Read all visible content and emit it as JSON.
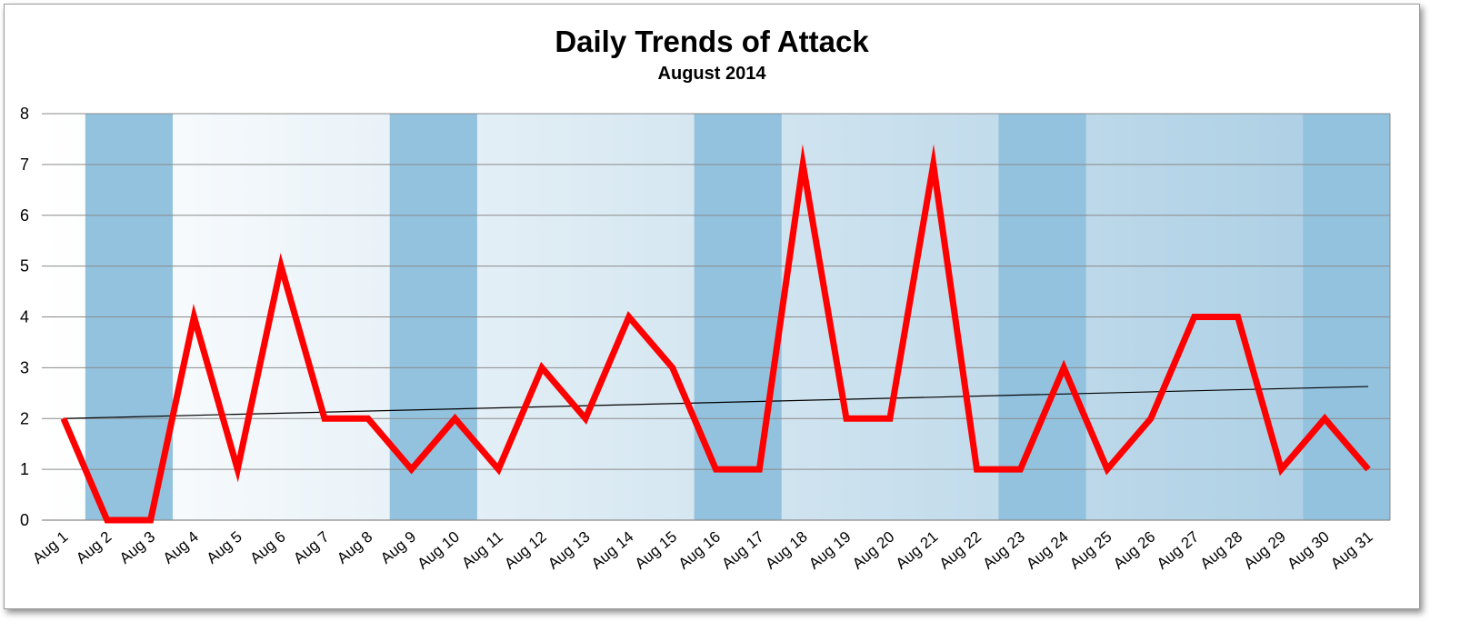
{
  "chart_data": {
    "type": "line",
    "title": "Daily Trends of Attack",
    "subtitle": "August 2014",
    "xlabel": "",
    "ylabel": "",
    "ylim": [
      0,
      8
    ],
    "yticks": [
      0,
      1,
      2,
      3,
      4,
      5,
      6,
      7,
      8
    ],
    "grid": true,
    "legend": "none",
    "categories": [
      "Aug 1",
      "Aug 2",
      "Aug 3",
      "Aug 4",
      "Aug 5",
      "Aug 6",
      "Aug 7",
      "Aug 8",
      "Aug 9",
      "Aug 10",
      "Aug 11",
      "Aug 12",
      "Aug 13",
      "Aug 14",
      "Aug 15",
      "Aug 16",
      "Aug 17",
      "Aug 18",
      "Aug 19",
      "Aug 20",
      "Aug 21",
      "Aug 22",
      "Aug 23",
      "Aug 24",
      "Aug 25",
      "Aug 26",
      "Aug 27",
      "Aug 28",
      "Aug 29",
      "Aug 30",
      "Aug 31"
    ],
    "series": [
      {
        "color": "#ff0000",
        "values": [
          2,
          0,
          0,
          4,
          1,
          5,
          2,
          2,
          1,
          2,
          1,
          3,
          2,
          4,
          3,
          1,
          1,
          7,
          2,
          2,
          7,
          1,
          1,
          3,
          1,
          2,
          4,
          4,
          1,
          2,
          1
        ]
      }
    ],
    "trendline": {
      "type": "linear",
      "color": "#000000",
      "start": 2.0,
      "end": 2.63
    },
    "shaded_categories": [
      "Aug 2",
      "Aug 3",
      "Aug 9",
      "Aug 10",
      "Aug 16",
      "Aug 17",
      "Aug 23",
      "Aug 24",
      "Aug 30",
      "Aug 31"
    ],
    "colors": {
      "shade": "#93c2df",
      "background_start": "#ffffff",
      "background_end": "#a9cde3",
      "grid": "#8a8a8a"
    }
  }
}
